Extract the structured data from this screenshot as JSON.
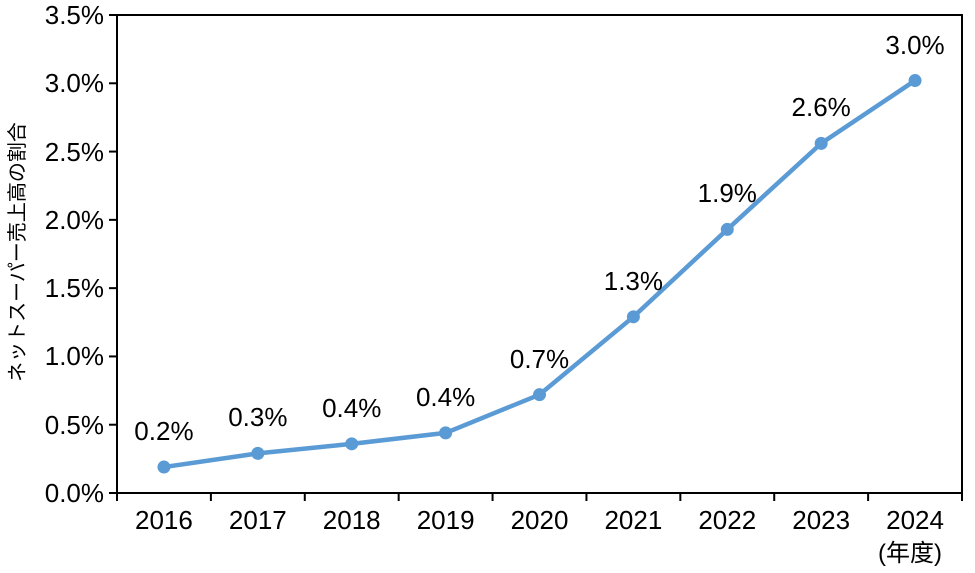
{
  "chart_data": {
    "type": "line",
    "title": "",
    "ylabel": "ネットスーパー売上高の割合",
    "xlabel": "(年度)",
    "categories": [
      "2016",
      "2017",
      "2018",
      "2019",
      "2020",
      "2021",
      "2022",
      "2023",
      "2024"
    ],
    "series": [
      {
        "name": "ネットスーパー売上高の割合",
        "values": [
          0.19,
          0.29,
          0.36,
          0.44,
          0.72,
          1.29,
          1.93,
          2.56,
          3.02
        ],
        "labels": [
          "0.2%",
          "0.3%",
          "0.4%",
          "0.4%",
          "0.7%",
          "1.3%",
          "1.9%",
          "2.6%",
          "3.0%"
        ]
      }
    ],
    "ylim": [
      0,
      3.5
    ],
    "ytick_step": 0.5,
    "ytick_labels": [
      "0.0%",
      "0.5%",
      "1.0%",
      "1.5%",
      "2.0%",
      "2.5%",
      "3.0%",
      "3.5%"
    ],
    "grid": false,
    "legend": "none",
    "line_color": "#5B9BD5",
    "axis_color": "#000000",
    "marker": "circle"
  }
}
